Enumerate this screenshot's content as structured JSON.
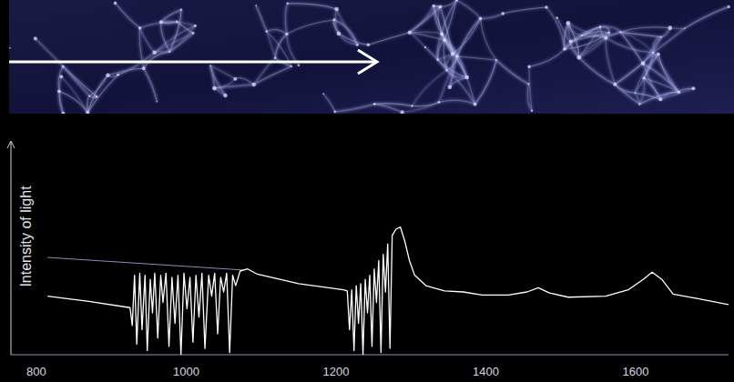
{
  "chart_data": {
    "type": "line",
    "y_label": "Intensity of light",
    "xlim": [
      766,
      1724
    ],
    "xticks": [
      800,
      1000,
      1200,
      1400,
      1600
    ],
    "ylim": [
      0,
      100
    ],
    "yticks": [],
    "tick_labels": "x",
    "grid": false,
    "series": [
      {
        "color": "#8a8fb4",
        "line_style": "solid",
        "x": [
          815,
          1075
        ],
        "values": [
          46.5,
          40.5
        ]
      },
      {
        "color": "#ffffff",
        "line_style": "solid",
        "x": [
          815,
          870,
          925,
          928,
          931,
          934,
          938,
          941,
          945,
          948,
          952,
          955,
          958,
          962,
          966,
          969,
          973,
          977,
          981,
          985,
          989,
          993,
          997,
          1001,
          1005,
          1009,
          1013,
          1017,
          1021,
          1025,
          1030,
          1034,
          1038,
          1042,
          1046,
          1050,
          1054,
          1058,
          1062,
          1066,
          1072,
          1082,
          1095,
          1150,
          1210,
          1215,
          1218,
          1221,
          1224,
          1227,
          1230,
          1233,
          1236,
          1239,
          1242,
          1245,
          1248,
          1251,
          1254,
          1257,
          1260,
          1263,
          1266,
          1269,
          1272,
          1275,
          1280,
          1286,
          1292,
          1298,
          1305,
          1320,
          1345,
          1370,
          1395,
          1430,
          1455,
          1470,
          1485,
          1510,
          1560,
          1590,
          1610,
          1622,
          1635,
          1650,
          1680,
          1724
        ],
        "values": [
          28,
          25.5,
          22.5,
          14,
          38,
          5,
          39,
          12,
          38,
          2,
          36,
          20,
          39,
          8,
          38,
          25,
          39,
          4,
          37,
          15,
          38,
          0,
          39,
          22,
          37,
          6,
          38,
          18,
          39,
          3,
          38,
          28,
          39,
          10,
          37,
          30,
          39,
          1,
          38,
          33,
          40,
          41,
          38.5,
          34,
          31,
          30.5,
          12,
          31,
          2,
          33,
          15,
          34,
          0,
          36,
          20,
          38,
          4,
          41,
          25,
          45,
          1,
          48,
          30,
          53,
          3,
          57,
          60,
          61,
          54,
          45,
          38,
          33,
          30.5,
          30,
          28.5,
          28.5,
          30,
          32,
          29.5,
          27.5,
          28,
          31,
          36,
          39.5,
          36,
          29,
          27,
          24
        ]
      }
    ]
  }
}
